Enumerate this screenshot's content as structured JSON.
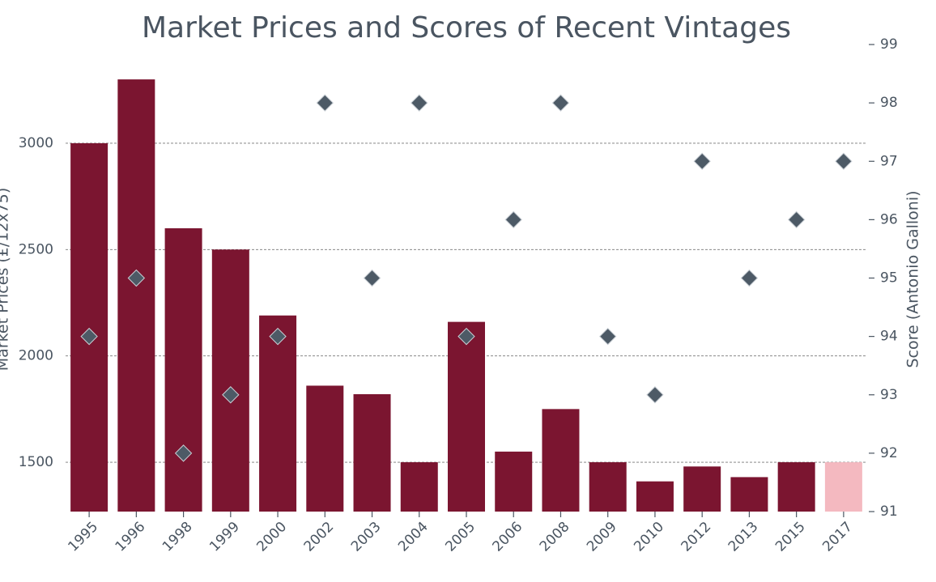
{
  "chart_data": {
    "type": "bar",
    "title": "Market Prices and Scores of Recent Vintages",
    "y_label": "Market Prices (£/12x75)",
    "y2_label": "Score (Antonio Galloni)",
    "categories": [
      "1995",
      "1996",
      "1998",
      "1999",
      "2000",
      "2002",
      "2003",
      "2004",
      "2005",
      "2006",
      "2008",
      "2009",
      "2010",
      "2012",
      "2013",
      "2015",
      "2017"
    ],
    "series": [
      {
        "type": "bar",
        "colors": [
          "#7b1530",
          "#7b1530",
          "#7b1530",
          "#7b1530",
          "#7b1530",
          "#7b1530",
          "#7b1530",
          "#7b1530",
          "#7b1530",
          "#7b1530",
          "#7b1530",
          "#7b1530",
          "#7b1530",
          "#7b1530",
          "#7b1530",
          "#7b1530",
          "#f4b9c0"
        ],
        "values": [
          3000,
          3300,
          2600,
          2500,
          2190,
          1860,
          1820,
          1500,
          2160,
          1550,
          1750,
          1500,
          1410,
          1480,
          1430,
          1500,
          1500
        ]
      },
      {
        "type": "scatter",
        "axis": "y2",
        "color": "#4d5a66",
        "values": [
          94,
          95,
          92,
          93,
          94,
          98,
          95,
          98,
          94,
          96,
          98,
          94,
          93,
          97,
          95,
          96,
          97
        ]
      }
    ],
    "ylim": [
      1268,
      3464
    ],
    "yticks": [
      1500,
      2000,
      2500,
      3000
    ],
    "y2lim": [
      91,
      99
    ],
    "y2ticks": [
      91,
      92,
      93,
      94,
      95,
      96,
      97,
      98,
      99
    ],
    "grid": true
  }
}
